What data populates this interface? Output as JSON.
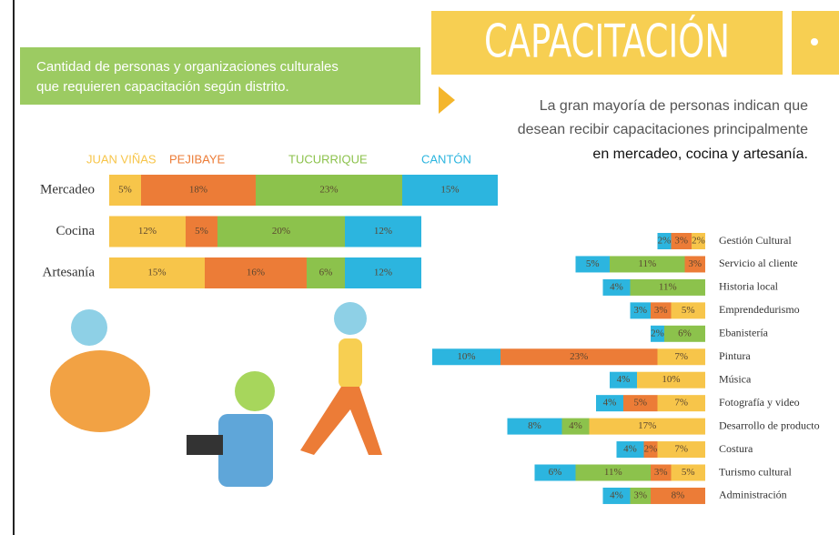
{
  "header": {
    "title": "CAPACITACIÓN",
    "subtitle": [
      "Cantidad de personas y organizaciones culturales",
      "que requieren capacitación según distrito."
    ],
    "statement": [
      "La gran mayoría de personas indican que",
      "desean recibir capacitaciones principalmente",
      "en mercadeo, cocina y artesanía."
    ]
  },
  "chart_data": [
    {
      "type": "stacked-bar",
      "categories": [
        "Mercadeo",
        "Cocina",
        "Artesanía"
      ],
      "series": [
        {
          "name": "JUAN VIÑAS",
          "color": "#f7c54a",
          "values": [
            5,
            12,
            15
          ],
          "value_labels": [
            "5%",
            "12%",
            "15%"
          ]
        },
        {
          "name": "PEJIBAYE",
          "color": "#ec7c37",
          "values": [
            18,
            5,
            16
          ],
          "value_labels": [
            "18%",
            "5%",
            "16%"
          ]
        },
        {
          "name": "TUCURRIQUE",
          "color": "#8cc24c",
          "values": [
            23,
            20,
            6
          ],
          "value_labels": [
            "23%",
            "20%",
            "6%"
          ]
        },
        {
          "name": "CANTÓN",
          "color": "#2cb5df",
          "values": [
            15,
            12,
            12
          ],
          "value_labels": [
            "15%",
            "12%",
            "12%"
          ]
        }
      ]
    },
    {
      "type": "stacked-bar",
      "categories": [
        "Gestión Cultural",
        "Servicio al cliente",
        "Historia local",
        "Emprendedurismo",
        "Ebanistería",
        "Pintura",
        "Música",
        "Fotografía y video",
        "Desarrollo de producto",
        "Costura",
        "Turismo cultural",
        "Administración"
      ],
      "series": [
        {
          "color": "#2cb5df",
          "values": [
            2,
            5,
            4,
            3,
            2,
            10,
            4,
            4,
            8,
            4,
            6,
            4
          ],
          "value_labels": [
            "2%",
            "5%",
            "4%",
            "3%",
            "2%",
            "10%",
            "4%",
            "4%",
            "8%",
            "4%",
            "6%",
            "4%"
          ]
        },
        {
          "color": "#8cc24c",
          "values": [
            null,
            11,
            11,
            null,
            6,
            null,
            null,
            null,
            4,
            null,
            11,
            3
          ],
          "value_labels": [
            null,
            "11%",
            "11%",
            null,
            "6%",
            null,
            null,
            null,
            "4%",
            null,
            "11%",
            "3%"
          ]
        },
        {
          "color": "#ec7c37",
          "values": [
            3,
            3,
            null,
            3,
            null,
            23,
            null,
            5,
            null,
            2,
            3,
            8
          ],
          "value_labels": [
            "3%",
            "3%",
            null,
            "3%",
            null,
            "23%",
            null,
            "5%",
            null,
            "2%",
            "3%",
            "8%"
          ]
        },
        {
          "color": "#f7c54a",
          "values": [
            2,
            null,
            null,
            5,
            null,
            7,
            10,
            7,
            17,
            7,
            5,
            null
          ],
          "value_labels": [
            "2%",
            null,
            null,
            "5%",
            null,
            "7%",
            "10%",
            "7%",
            "17%",
            "7%",
            "5%",
            null
          ]
        }
      ]
    }
  ]
}
